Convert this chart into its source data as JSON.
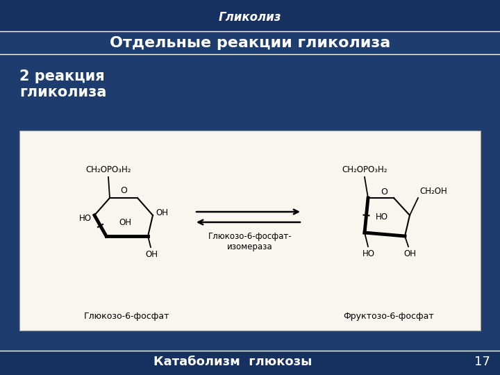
{
  "bg_color": "#1e3d6e",
  "bg_top_color": "#163060",
  "title_italic": "Гликолиз",
  "subtitle": "Отдельные реакции гликолиза",
  "left_label": "2 реакция\nгликолиза",
  "footer_text": "Катаболизм  глюкозы",
  "footer_number": "17",
  "white_box_color": "#f8f6ee",
  "text_color_white": "#ffffff",
  "enzyme_label": "Глюкозо-6-фосфат-\nизомераза",
  "left_compound": "Глюкозо-6-фосфат",
  "right_compound": "Фруктозо-6-фосфат",
  "title_fontsize": 12,
  "subtitle_fontsize": 16,
  "label_fontsize": 15,
  "footer_fontsize": 13,
  "compound_fontsize": 9
}
